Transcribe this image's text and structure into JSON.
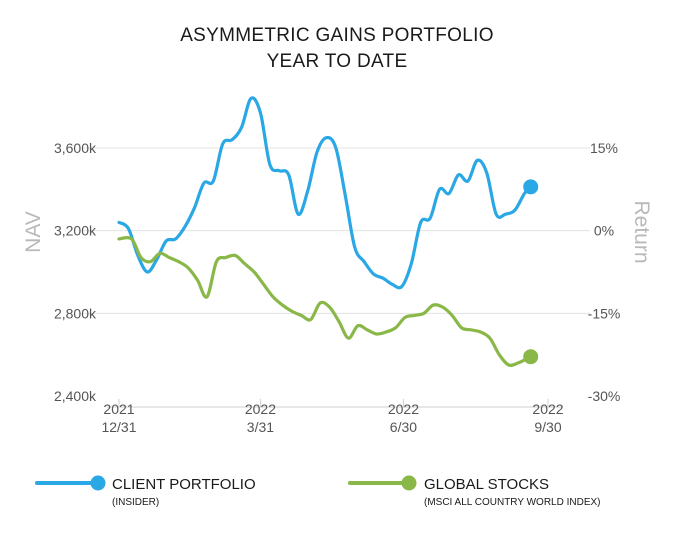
{
  "chart_data": {
    "type": "line",
    "title_lines": [
      "ASYMMETRIC GAINS PORTFOLIO",
      "YEAR TO DATE"
    ],
    "ylabel_left": "NAV",
    "ylabel_right": "Return",
    "y_left": {
      "min": 2400,
      "max": 3600,
      "ticks": [
        {
          "value": 3600,
          "label": "3,600k"
        },
        {
          "value": 3200,
          "label": "3,200k"
        },
        {
          "value": 2800,
          "label": "2,800k"
        },
        {
          "value": 2400,
          "label": "2,400k"
        }
      ]
    },
    "y_right": {
      "ticks": [
        {
          "value": 15,
          "label": "15%"
        },
        {
          "value": 0,
          "label": "0%"
        },
        {
          "value": -15,
          "label": "-15%"
        },
        {
          "value": -30,
          "label": "-30%"
        }
      ]
    },
    "x_ticks": [
      {
        "t": 0,
        "year": "2021",
        "date": "12/31"
      },
      {
        "t": 90,
        "year": "2022",
        "date": "3/31"
      },
      {
        "t": 181,
        "year": "2022",
        "date": "6/30"
      },
      {
        "t": 273,
        "year": "2022",
        "date": "9/30"
      }
    ],
    "x_range": [
      0,
      273
    ],
    "series": [
      {
        "name": "CLIENT PORTFOLIO",
        "subtitle": "(INSIDER)",
        "color": "#2aa7e5",
        "points": [
          [
            0,
            3240
          ],
          [
            6,
            3210
          ],
          [
            12,
            3080
          ],
          [
            18,
            3000
          ],
          [
            24,
            3060
          ],
          [
            30,
            3150
          ],
          [
            36,
            3160
          ],
          [
            42,
            3220
          ],
          [
            48,
            3310
          ],
          [
            54,
            3430
          ],
          [
            60,
            3440
          ],
          [
            66,
            3620
          ],
          [
            72,
            3640
          ],
          [
            78,
            3700
          ],
          [
            84,
            3840
          ],
          [
            90,
            3770
          ],
          [
            96,
            3520
          ],
          [
            102,
            3490
          ],
          [
            108,
            3470
          ],
          [
            114,
            3280
          ],
          [
            120,
            3390
          ],
          [
            126,
            3580
          ],
          [
            132,
            3650
          ],
          [
            138,
            3600
          ],
          [
            144,
            3370
          ],
          [
            150,
            3120
          ],
          [
            156,
            3050
          ],
          [
            162,
            2990
          ],
          [
            168,
            2970
          ],
          [
            174,
            2940
          ],
          [
            180,
            2930
          ],
          [
            186,
            3040
          ],
          [
            192,
            3240
          ],
          [
            198,
            3260
          ],
          [
            204,
            3400
          ],
          [
            210,
            3380
          ],
          [
            216,
            3470
          ],
          [
            222,
            3440
          ],
          [
            228,
            3540
          ],
          [
            234,
            3480
          ],
          [
            240,
            3280
          ],
          [
            246,
            3280
          ],
          [
            252,
            3300
          ],
          [
            258,
            3380
          ],
          [
            262,
            3412
          ]
        ]
      },
      {
        "name": "GLOBAL STOCKS",
        "subtitle": "(MSCI ALL COUNTRY WORLD INDEX)",
        "color": "#8ab848",
        "points": [
          [
            0,
            3160
          ],
          [
            8,
            3160
          ],
          [
            14,
            3070
          ],
          [
            20,
            3050
          ],
          [
            26,
            3090
          ],
          [
            32,
            3070
          ],
          [
            38,
            3050
          ],
          [
            44,
            3020
          ],
          [
            50,
            2960
          ],
          [
            56,
            2880
          ],
          [
            62,
            3050
          ],
          [
            68,
            3070
          ],
          [
            74,
            3080
          ],
          [
            80,
            3040
          ],
          [
            86,
            3000
          ],
          [
            92,
            2940
          ],
          [
            98,
            2880
          ],
          [
            104,
            2840
          ],
          [
            110,
            2810
          ],
          [
            116,
            2790
          ],
          [
            122,
            2770
          ],
          [
            128,
            2850
          ],
          [
            134,
            2830
          ],
          [
            140,
            2760
          ],
          [
            146,
            2680
          ],
          [
            152,
            2740
          ],
          [
            158,
            2720
          ],
          [
            164,
            2700
          ],
          [
            170,
            2710
          ],
          [
            176,
            2730
          ],
          [
            182,
            2780
          ],
          [
            188,
            2790
          ],
          [
            194,
            2800
          ],
          [
            200,
            2840
          ],
          [
            206,
            2830
          ],
          [
            212,
            2790
          ],
          [
            218,
            2730
          ],
          [
            224,
            2720
          ],
          [
            230,
            2710
          ],
          [
            236,
            2680
          ],
          [
            242,
            2600
          ],
          [
            248,
            2550
          ],
          [
            254,
            2560
          ],
          [
            262,
            2590
          ]
        ]
      }
    ]
  }
}
